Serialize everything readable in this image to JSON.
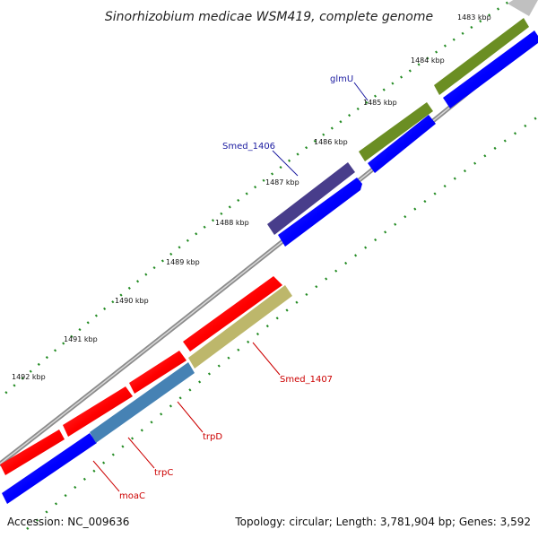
{
  "title": "Sinorhizobium medicae WSM419, complete genome",
  "footer": {
    "accession": "Accession: NC_009636",
    "summary": "Topology: circular; Length: 3,781,904 bp; Genes: 3,592"
  },
  "ticks": [
    "1483 kbp",
    "1484 kbp",
    "1485 kbp",
    "1486 kbp",
    "1487 kbp",
    "1488 kbp",
    "1489 kbp",
    "1490 kbp",
    "1491 kbp",
    "1492 kbp"
  ],
  "genes": [
    {
      "label": "glmU",
      "label_color": "#1a1aa0"
    },
    {
      "label": "Smed_1406",
      "label_color": "#1a1aa0"
    },
    {
      "label": "Smed_1407",
      "label_color": "#cc0000"
    },
    {
      "label": "trpD",
      "label_color": "#cc0000"
    },
    {
      "label": "trpC",
      "label_color": "#cc0000"
    },
    {
      "label": "moaC",
      "label_color": "#cc0000"
    }
  ],
  "colors": {
    "forward_strand": "#0000ff",
    "reverse_strand": "#ff0000",
    "glmU": "#6b8e23",
    "Smed_1406": "#483d8b",
    "Smed_1407": "#bdb76b",
    "trp": "#4682b4",
    "backbone": "#a0a0a0",
    "tick": "#228b22"
  }
}
